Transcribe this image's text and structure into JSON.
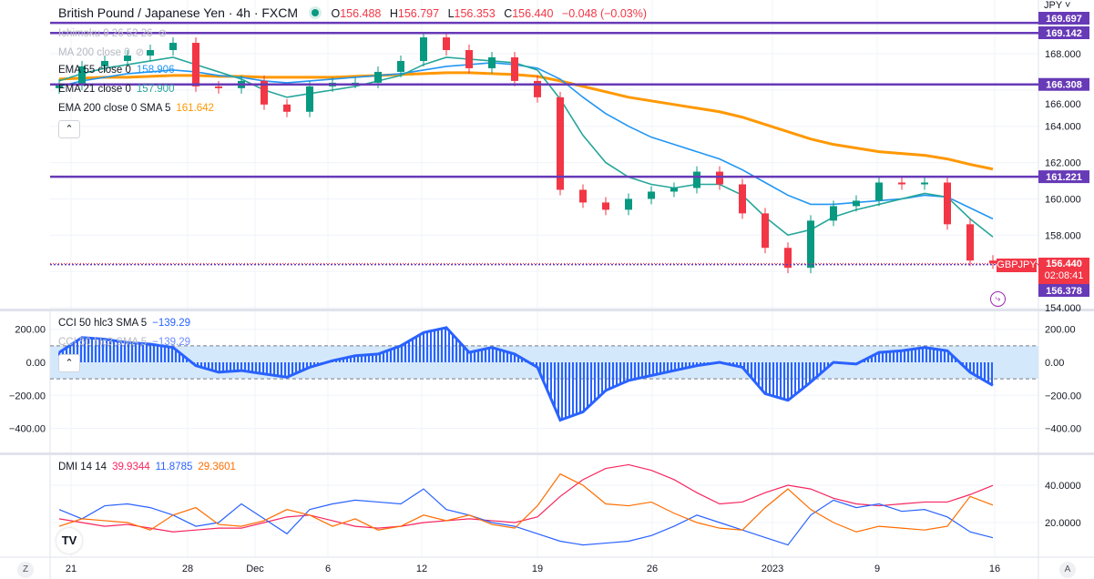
{
  "header": {
    "title": "British Pound / Japanese Yen · 4h · FXCM",
    "status_color": "#089981",
    "ohlc": {
      "o_label": "O",
      "o": "156.488",
      "h_label": "H",
      "h": "156.797",
      "l_label": "L",
      "l": "156.353",
      "c_label": "C",
      "c": "156.440",
      "change": "−0.048 (−0.03%)"
    }
  },
  "legend": {
    "ichimoku": "Ichimoku 9 26 52 26",
    "ma200": "MA 200 close 0",
    "ema55": {
      "label": "EMA 55 close 0",
      "value": "158.906",
      "color": "#2196f3"
    },
    "ema21": {
      "label": "EMA 21 close 0",
      "value": "157.900",
      "color": "#26a69a"
    },
    "ema200": {
      "label": "EMA 200 close 0 SMA 5",
      "value": "161.642",
      "color": "#ff9800"
    },
    "hidden_icon": "eye-crossed-icon",
    "collapse_icon": "chevron-up-icon"
  },
  "price_axis": {
    "currency": "JPY",
    "ticks": [
      "168.000",
      "166.000",
      "164.000",
      "162.000",
      "160.000",
      "158.000",
      "154.000"
    ],
    "levels": [
      "169.697",
      "169.142",
      "166.308",
      "161.221",
      "156.378"
    ],
    "symbol_tag": "GBPJPY",
    "last_price": "156.440",
    "countdown": "02:08:41",
    "level_color": "#673ab7",
    "up_color": "#089981",
    "down_color": "#f23645"
  },
  "cci_pane": {
    "label": "CCI 50 hlc3 SMA 5",
    "value": "−139.29",
    "label2": "CCI 50 hlc3 SMA 5",
    "value2": "−139.29",
    "ticks": [
      "200.00",
      "0.00",
      "−200.00",
      "−400.00"
    ]
  },
  "dmi_pane": {
    "label": "DMI 14 14",
    "adx": "39.9344",
    "plus_di": "11.8785",
    "minus_di": "29.3601",
    "ticks": [
      "40.0000",
      "20.0000"
    ]
  },
  "time_axis": {
    "ticks": [
      "21",
      "28",
      "Dec",
      "6",
      "12",
      "19",
      "26",
      "2023",
      "9",
      "16"
    ],
    "left_button": "Z",
    "right_button": "A",
    "logo": "TV"
  },
  "chart_data": [
    {
      "type": "candlestick",
      "title": "British Pound / Japanese Yen · 4h · FXCM",
      "x": [
        "Nov 18",
        "Nov 21",
        "Nov 22",
        "Nov 23",
        "Nov 24",
        "Nov 25",
        "Nov 28",
        "Nov 29",
        "Nov 30",
        "Dec 1",
        "Dec 2",
        "Dec 5",
        "Dec 6",
        "Dec 7",
        "Dec 8",
        "Dec 9",
        "Dec 12",
        "Dec 13",
        "Dec 14",
        "Dec 15",
        "Dec 16",
        "Dec 19",
        "Dec 20",
        "Dec 21",
        "Dec 22",
        "Dec 23",
        "Dec 26",
        "Dec 27",
        "Dec 28",
        "Dec 29",
        "Dec 30",
        "Jan 2",
        "Jan 3",
        "Jan 4",
        "Jan 5",
        "Jan 6",
        "Jan 9",
        "Jan 10",
        "Jan 11",
        "Jan 12",
        "Jan 13",
        "Jan 16"
      ],
      "close": [
        166.3,
        167.3,
        167.6,
        167.9,
        168.2,
        168.6,
        166.2,
        166.1,
        166.5,
        165.2,
        164.8,
        166.2,
        166.4,
        166.4,
        167.0,
        167.6,
        168.9,
        168.2,
        167.2,
        167.8,
        166.5,
        165.6,
        160.5,
        159.8,
        159.4,
        160.0,
        160.4,
        160.6,
        161.5,
        160.8,
        159.2,
        157.3,
        156.2,
        158.8,
        159.6,
        159.9,
        160.9,
        160.8,
        160.9,
        158.6,
        156.6,
        156.44
      ],
      "series": [
        {
          "name": "EMA 21 close 0",
          "color": "#26a69a",
          "values": [
            166.5,
            166.9,
            167.2,
            167.4,
            167.6,
            167.8,
            167.4,
            167.0,
            166.6,
            166.0,
            165.6,
            165.8,
            166.0,
            166.2,
            166.5,
            166.8,
            167.4,
            167.8,
            167.7,
            167.6,
            167.5,
            167.1,
            165.5,
            163.5,
            162.0,
            161.2,
            160.8,
            160.6,
            160.8,
            160.8,
            160.2,
            159.0,
            158.0,
            158.3,
            159.0,
            159.4,
            159.7,
            160.0,
            160.3,
            160.1,
            158.9,
            157.9
          ]
        },
        {
          "name": "EMA 55 close 0",
          "color": "#2196f3",
          "values": [
            166.2,
            166.5,
            166.7,
            166.9,
            167.0,
            167.1,
            167.0,
            166.8,
            166.7,
            166.5,
            166.4,
            166.5,
            166.6,
            166.7,
            166.8,
            166.9,
            167.1,
            167.3,
            167.4,
            167.5,
            167.4,
            167.2,
            166.6,
            165.6,
            164.7,
            164.0,
            163.4,
            163.0,
            162.6,
            162.2,
            161.6,
            160.9,
            160.2,
            159.7,
            159.7,
            159.8,
            159.9,
            160.0,
            160.2,
            160.1,
            159.5,
            158.9
          ]
        },
        {
          "name": "EMA 200 close 0 SMA 5",
          "color": "#ff9800",
          "values": [
            166.6,
            166.65,
            166.7,
            166.7,
            166.75,
            166.8,
            166.8,
            166.75,
            166.75,
            166.7,
            166.7,
            166.7,
            166.7,
            166.75,
            166.8,
            166.85,
            166.9,
            166.95,
            166.95,
            166.9,
            166.85,
            166.75,
            166.5,
            166.2,
            165.9,
            165.6,
            165.4,
            165.2,
            165.0,
            164.8,
            164.5,
            164.1,
            163.7,
            163.3,
            163.0,
            162.8,
            162.6,
            162.5,
            162.4,
            162.2,
            161.9,
            161.64
          ]
        }
      ],
      "horizontal_levels": [
        169.697,
        169.142,
        166.308,
        161.221,
        156.378
      ],
      "ylim": [
        154,
        170.5
      ],
      "grid": true
    },
    {
      "type": "bar",
      "title": "CCI 50 hlc3 SMA 5",
      "values": [
        60,
        150,
        140,
        120,
        110,
        90,
        -20,
        -60,
        -50,
        -70,
        -90,
        -30,
        10,
        40,
        50,
        100,
        180,
        210,
        60,
        90,
        50,
        -30,
        -350,
        -300,
        -170,
        -110,
        -80,
        -50,
        -20,
        0,
        -30,
        -190,
        -230,
        -120,
        0,
        -10,
        60,
        70,
        90,
        70,
        -60,
        -139.29
      ],
      "band": [
        -100,
        100
      ],
      "ylim": [
        -480,
        260
      ],
      "color": "#2962ff"
    },
    {
      "type": "line",
      "title": "DMI 14 14",
      "series": [
        {
          "name": "ADX",
          "color": "#f7255f",
          "values": [
            22,
            20,
            18,
            19,
            17,
            15,
            16,
            17,
            17,
            20,
            23,
            24,
            21,
            18,
            17,
            18,
            20,
            21,
            22,
            21,
            20,
            23,
            34,
            43,
            49,
            51,
            48,
            43,
            36,
            30,
            31,
            36,
            40,
            38,
            33,
            30,
            29,
            30,
            31,
            31,
            35,
            39.93
          ]
        },
        {
          "name": "+DI",
          "color": "#2962ff",
          "values": [
            27,
            22,
            29,
            30,
            28,
            24,
            18,
            20,
            30,
            22,
            14,
            27,
            30,
            32,
            31,
            30,
            38,
            27,
            24,
            20,
            18,
            14,
            10,
            8,
            9,
            10,
            13,
            18,
            24,
            20,
            16,
            12,
            8,
            24,
            32,
            28,
            30,
            26,
            27,
            23,
            15,
            11.88
          ]
        },
        {
          "name": "-DI",
          "color": "#ff6d00",
          "values": [
            18,
            22,
            21,
            20,
            16,
            24,
            28,
            19,
            18,
            21,
            27,
            24,
            18,
            22,
            16,
            18,
            24,
            21,
            24,
            19,
            17,
            29,
            46,
            40,
            30,
            29,
            31,
            25,
            20,
            17,
            16,
            28,
            38,
            27,
            20,
            15,
            18,
            17,
            16,
            18,
            34,
            29.36
          ]
        }
      ],
      "ylim": [
        0,
        58
      ]
    }
  ]
}
